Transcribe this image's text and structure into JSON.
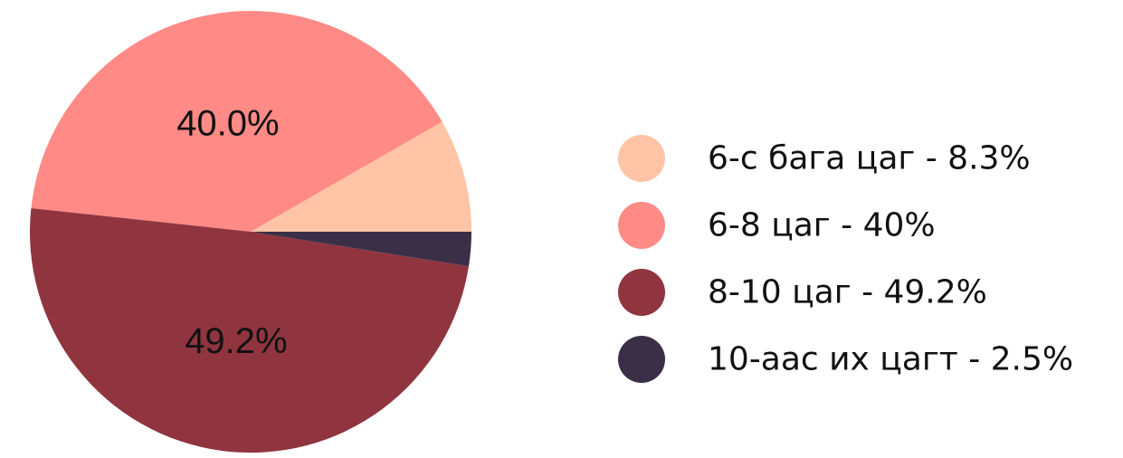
{
  "chart_data": {
    "type": "pie",
    "title": "",
    "slices": [
      {
        "label": "6-с бага цаг - 8.3%",
        "value": 8.3,
        "color": "#FFC4A5",
        "data_label": ""
      },
      {
        "label": "6-8 цаг - 40%",
        "value": 40.0,
        "color": "#FF8A86",
        "data_label": "40.0%"
      },
      {
        "label": "8-10 цаг - 49.2%",
        "value": 49.2,
        "color": "#90353F",
        "data_label": "49.2%"
      },
      {
        "label": "10-аас их цагт - 2.5%",
        "value": 2.5,
        "color": "#3A2F47",
        "data_label": ""
      }
    ],
    "start_angle": 0,
    "direction": "counterclockwise-in-screen-from-east",
    "legend": "right"
  }
}
